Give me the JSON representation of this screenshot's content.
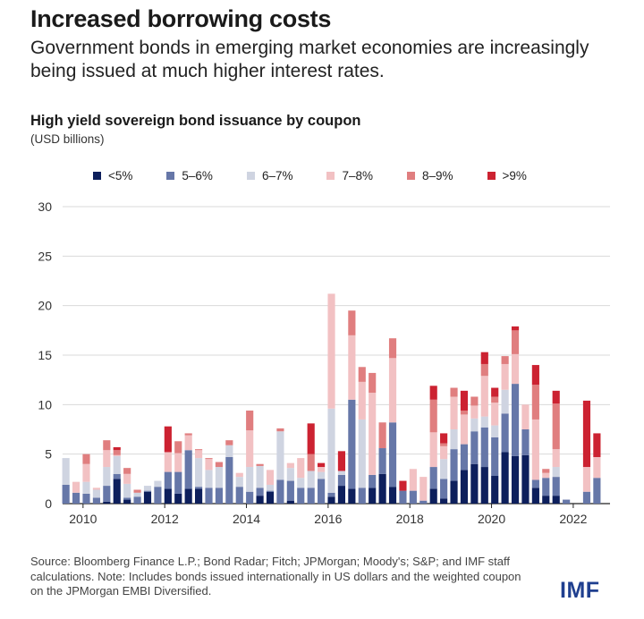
{
  "header": {
    "title": "Increased borrowing costs",
    "subtitle": "Government bonds in emerging market economies are increasingly being issued at much higher interest rates."
  },
  "footer": {
    "source": "Source: Bloomberg Finance L.P.; Bond Radar; Fitch; JPMorgan; Moody's; S&P; and IMF staff calculations. Note: Includes bonds issued internationally in US dollars and the weighted coupon on the JPMorgan EMBI Diversified.",
    "logo": "IMF"
  },
  "chart_data": {
    "type": "bar",
    "stacked": true,
    "title": "High yield sovereign bond issuance by coupon",
    "ylabel": "(USD billions)",
    "xlabel": "",
    "ylim": [
      0,
      30
    ],
    "yticks": [
      0,
      5,
      10,
      15,
      20,
      25,
      30
    ],
    "xticks": [
      {
        "label": "2010",
        "at": 2010
      },
      {
        "label": "2012",
        "at": 2012
      },
      {
        "label": "2014",
        "at": 2014
      },
      {
        "label": "2016",
        "at": 2016
      },
      {
        "label": "2018",
        "at": 2018
      },
      {
        "label": "2020",
        "at": 2020
      },
      {
        "label": "2022",
        "at": 2022
      }
    ],
    "x_time_range": [
      2009.5,
      2022.9
    ],
    "grid": true,
    "legend_position": "top",
    "x": [
      2009.58,
      2009.83,
      2010.08,
      2010.33,
      2010.58,
      2010.83,
      2011.08,
      2011.33,
      2011.58,
      2011.83,
      2012.08,
      2012.33,
      2012.58,
      2012.83,
      2013.08,
      2013.33,
      2013.58,
      2013.83,
      2014.08,
      2014.33,
      2014.58,
      2014.83,
      2015.08,
      2015.33,
      2015.58,
      2015.83,
      2016.08,
      2016.33,
      2016.58,
      2016.83,
      2017.08,
      2017.33,
      2017.58,
      2017.83,
      2018.08,
      2018.33,
      2018.58,
      2018.83,
      2019.08,
      2019.33,
      2019.58,
      2019.83,
      2020.08,
      2020.33,
      2020.58,
      2020.83,
      2021.08,
      2021.33,
      2021.58,
      2021.83,
      2022.08,
      2022.33,
      2022.58,
      2022.83
    ],
    "series": [
      {
        "name": "<5%",
        "color": "#0d1f5c",
        "values": [
          0,
          0,
          0,
          0,
          0.2,
          2.5,
          0.4,
          0,
          1.2,
          0,
          1.5,
          1.0,
          1.5,
          1.5,
          0,
          0,
          0,
          0,
          0,
          0.8,
          1.2,
          0,
          0.3,
          0,
          0,
          0,
          0.7,
          1.8,
          1.5,
          0,
          1.6,
          3.0,
          1.7,
          0,
          0,
          0,
          1.5,
          0.5,
          2.3,
          3.4,
          4.0,
          3.7,
          2.8,
          5.2,
          4.8,
          4.9,
          1.6,
          0.8,
          0.8,
          0,
          0,
          0,
          0,
          0
        ]
      },
      {
        "name": "5–6%",
        "color": "#6677a8",
        "values": [
          1.9,
          1.1,
          1.0,
          0.6,
          1.6,
          0.5,
          0.2,
          0.7,
          0.1,
          1.7,
          1.7,
          2.2,
          3.9,
          0.2,
          1.6,
          1.6,
          4.7,
          1.7,
          1.2,
          0.8,
          0.1,
          2.4,
          2.0,
          1.6,
          1.6,
          2.5,
          0.4,
          1.1,
          9.0,
          1.6,
          1.3,
          2.6,
          6.5,
          1.3,
          1.3,
          0.3,
          2.2,
          2.0,
          3.2,
          2.6,
          3.3,
          4.0,
          3.9,
          3.9,
          7.3,
          2.6,
          0.8,
          1.8,
          1.9,
          0.4,
          0,
          1.2,
          2.6,
          0
        ]
      },
      {
        "name": "6–7%",
        "color": "#cfd4e1",
        "values": [
          2.7,
          0,
          1.2,
          0.8,
          1.9,
          1.8,
          1.4,
          0.4,
          0.5,
          0.6,
          0,
          0,
          0,
          2.9,
          1.8,
          2.1,
          1.2,
          1.0,
          2.5,
          2.2,
          0.6,
          4.9,
          1.3,
          1.0,
          1.7,
          0.7,
          8.5,
          0.4,
          0,
          6.9,
          0,
          0,
          0,
          0,
          0,
          0,
          0,
          2.0,
          2.0,
          0,
          1.3,
          1.1,
          1.2,
          2.4,
          0,
          0,
          0,
          0,
          1.0,
          0,
          0,
          0,
          0,
          0
        ]
      },
      {
        "name": "7–8%",
        "color": "#f2c1c3",
        "values": [
          0,
          1.1,
          1.8,
          0.2,
          1.7,
          0.1,
          1.0,
          0,
          0,
          0,
          2.0,
          1.9,
          1.5,
          0.8,
          1.1,
          0,
          0,
          0.4,
          3.7,
          0,
          1.5,
          0,
          0.5,
          2.0,
          0,
          0.5,
          11.6,
          0,
          6.5,
          3.8,
          8.3,
          0,
          6.5,
          0,
          2.2,
          2.4,
          3.5,
          1.3,
          3.3,
          3.0,
          1.3,
          4.1,
          2.3,
          2.6,
          3.0,
          2.5,
          6.1,
          0.5,
          1.8,
          0,
          0,
          2.5,
          2.1,
          0
        ]
      },
      {
        "name": "8–9%",
        "color": "#e07e7f",
        "values": [
          0,
          0,
          1.0,
          0,
          1.0,
          0.5,
          0.6,
          0.3,
          0,
          0,
          0,
          1.2,
          0.2,
          0.1,
          0.1,
          0.5,
          0.5,
          0,
          2.0,
          0.2,
          0,
          0.3,
          0,
          0,
          1.7,
          0,
          0,
          0,
          2.5,
          1.5,
          2.0,
          2.6,
          2.0,
          0,
          0,
          0,
          3.3,
          0.3,
          0.9,
          0.4,
          0.9,
          1.2,
          0.6,
          0.8,
          2.4,
          0,
          3.5,
          0.4,
          4.6,
          0,
          0,
          0,
          0,
          0
        ]
      },
      {
        "name": ">9%",
        "color": "#cc2231",
        "values": [
          0,
          0,
          0,
          0,
          0,
          0.3,
          0,
          0,
          0,
          0,
          2.6,
          0,
          0,
          0,
          0,
          0,
          0,
          0,
          0,
          0,
          0,
          0,
          0,
          0,
          3.1,
          0.4,
          0,
          2.0,
          0,
          0,
          0,
          0,
          0,
          1.0,
          0,
          0,
          1.4,
          1.0,
          0,
          2.0,
          0,
          1.2,
          0.9,
          0,
          0.4,
          0,
          2.0,
          0,
          1.3,
          0,
          0,
          6.7,
          2.4,
          0
        ]
      }
    ]
  }
}
